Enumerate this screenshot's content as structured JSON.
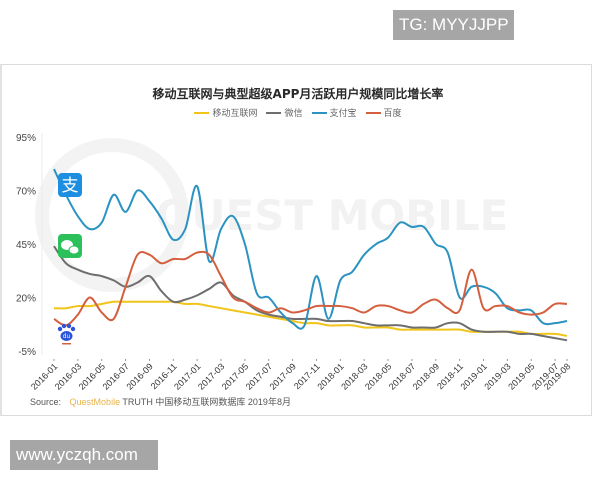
{
  "watermark_top": "TG: MYYJJPP",
  "watermark_bottom": "www.yczqh.com",
  "source": {
    "label": "Source:",
    "brand": "QuestMobile",
    "text": "TRUTH 中国移动互联网数据库 2019年8月"
  },
  "background_watermark": "QUEST MOBILE",
  "icons": [
    {
      "name": "alipay-icon",
      "glyph": "支",
      "color": "#1e8fe0"
    },
    {
      "name": "wechat-icon",
      "glyph": "●●",
      "color": "#2bc05a"
    },
    {
      "name": "baidu-icon",
      "glyph": "du",
      "color": "#2c54d8"
    }
  ],
  "chart_data": {
    "type": "line",
    "title": "移动互联网与典型超级APP月活跃用户规模同比增长率",
    "xlabel": "",
    "ylabel": "",
    "ylim": [
      -5,
      95
    ],
    "yticks": [
      "95%",
      "70%",
      "45%",
      "20%",
      "-5%"
    ],
    "ytick_values": [
      95,
      70,
      45,
      20,
      -5
    ],
    "grid": false,
    "legend_position": "top",
    "xtick_labels": [
      "2016-01",
      "2016-03",
      "2016-05",
      "2016-07",
      "2016-09",
      "2016-11",
      "2017-01",
      "2017-03",
      "2017-05",
      "2017-07",
      "2017-09",
      "2017-11",
      "2018-01",
      "2018-03",
      "2018-05",
      "2018-07",
      "2018-09",
      "2018-11",
      "2019-01",
      "2019-03",
      "2019-05",
      "2019-07",
      "2019-08"
    ],
    "x": [
      "2016-01",
      "2016-02",
      "2016-03",
      "2016-04",
      "2016-05",
      "2016-06",
      "2016-07",
      "2016-08",
      "2016-09",
      "2016-10",
      "2016-11",
      "2016-12",
      "2017-01",
      "2017-02",
      "2017-03",
      "2017-04",
      "2017-05",
      "2017-06",
      "2017-07",
      "2017-08",
      "2017-09",
      "2017-10",
      "2017-11",
      "2017-12",
      "2018-01",
      "2018-02",
      "2018-03",
      "2018-04",
      "2018-05",
      "2018-06",
      "2018-07",
      "2018-08",
      "2018-09",
      "2018-10",
      "2018-11",
      "2018-12",
      "2019-01",
      "2019-02",
      "2019-03",
      "2019-04",
      "2019-05",
      "2019-06",
      "2019-07",
      "2019-08"
    ],
    "series": [
      {
        "name": "移动互联网",
        "color": "#f0c419",
        "values": [
          15,
          15,
          16,
          16,
          17,
          18,
          18,
          18,
          18,
          18,
          18,
          17,
          17,
          16,
          15,
          14,
          13,
          12,
          11,
          10,
          9,
          8,
          8,
          7,
          7,
          7,
          6,
          6,
          6,
          5,
          5,
          5,
          5,
          5,
          5,
          4,
          4,
          4,
          4,
          4,
          3,
          3,
          3,
          2
        ]
      },
      {
        "name": "微信",
        "color": "#6e6e6e",
        "values": [
          44,
          36,
          33,
          31,
          30,
          28,
          25,
          27,
          30,
          23,
          18,
          19,
          21,
          24,
          27,
          21,
          18,
          14,
          12,
          11,
          10,
          10,
          10,
          9,
          9,
          9,
          8,
          7,
          7,
          7,
          6,
          6,
          6,
          8,
          8,
          5,
          4,
          4,
          4,
          3,
          3,
          2,
          1,
          0
        ]
      },
      {
        "name": "支付宝",
        "color": "#2b93c1",
        "values": [
          80,
          68,
          58,
          52,
          55,
          68,
          60,
          70,
          65,
          57,
          47,
          52,
          72,
          37,
          52,
          58,
          45,
          22,
          20,
          13,
          8,
          7,
          30,
          10,
          28,
          32,
          40,
          45,
          48,
          55,
          53,
          53,
          45,
          41,
          20,
          25,
          25,
          22,
          15,
          14,
          14,
          8,
          8,
          9
        ]
      },
      {
        "name": "百度",
        "color": "#d35f3f",
        "values": [
          10,
          7,
          12,
          20,
          13,
          10,
          25,
          40,
          40,
          36,
          38,
          38,
          41,
          40,
          30,
          20,
          18,
          15,
          13,
          15,
          13,
          14,
          16,
          16,
          16,
          15,
          13,
          16,
          16,
          14,
          13,
          17,
          19,
          15,
          14,
          33,
          15,
          16,
          16,
          13,
          12,
          13,
          17,
          17
        ]
      }
    ]
  }
}
